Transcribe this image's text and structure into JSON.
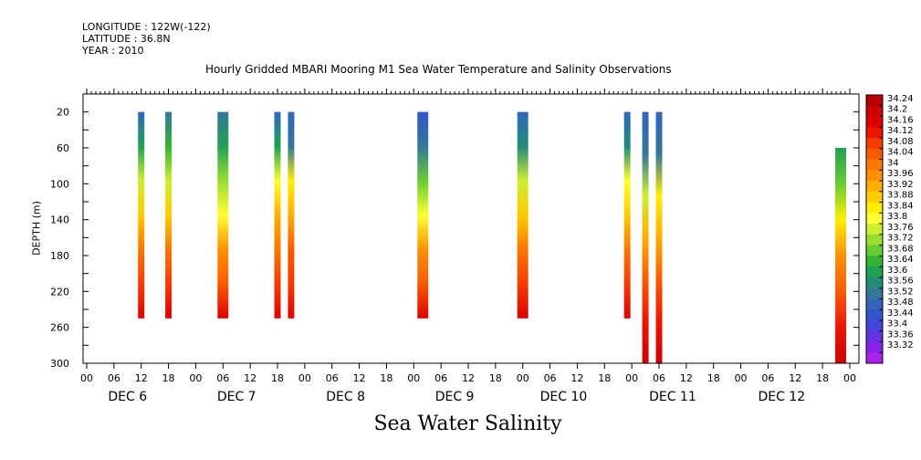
{
  "header": {
    "longitude": "LONGITUDE : 122W(-122)",
    "latitude": "LATITUDE : 36.8N",
    "year": "YEAR : 2010"
  },
  "chart_data": {
    "type": "heatmap",
    "title": "Hourly Gridded MBARI Mooring M1 Sea Water Temperature and Salinity Observations",
    "xlabel": "Sea Water Salinity",
    "ylabel": "DEPTH (m)",
    "x_unit": "hours since DEC 6 00",
    "x_range": [
      0,
      168
    ],
    "y_range": [
      300,
      0
    ],
    "y_ticks": [
      20,
      60,
      100,
      140,
      180,
      220,
      260,
      300
    ],
    "x_tick_labels": [
      "00",
      "06",
      "12",
      "18",
      "00",
      "06",
      "12",
      "18",
      "00",
      "06",
      "12",
      "18",
      "00",
      "06",
      "12",
      "18",
      "00",
      "06",
      "12",
      "18",
      "00",
      "06",
      "12",
      "18",
      "00",
      "06",
      "12",
      "18",
      "00"
    ],
    "day_labels": [
      "DEC 6",
      "DEC 7",
      "DEC 8",
      "DEC 9",
      "DEC 10",
      "DEC 11",
      "DEC 12"
    ],
    "colorbar": {
      "labels": [
        "34.24",
        "34.2",
        "34.16",
        "34.12",
        "34.08",
        "34.04",
        "34",
        "33.96",
        "33.92",
        "33.88",
        "33.84",
        "33.8",
        "33.76",
        "33.72",
        "33.68",
        "33.64",
        "33.6",
        "33.56",
        "33.52",
        "33.48",
        "33.44",
        "33.4",
        "33.36",
        "33.32"
      ],
      "colors": [
        "#b50000",
        "#cc0000",
        "#dd0000",
        "#ee1500",
        "#f63a00",
        "#fa5a00",
        "#fc7600",
        "#ff9100",
        "#ffae00",
        "#ffcc00",
        "#ffee00",
        "#ffff33",
        "#ccee33",
        "#99dd33",
        "#66cc33",
        "#33b333",
        "#22a055",
        "#228a77",
        "#337799",
        "#3366bb",
        "#3355cc",
        "#4444dd",
        "#6633e0",
        "#8822e8",
        "#aa22ee"
      ]
    },
    "profiles": [
      {
        "x": 12,
        "width_h": 1,
        "depth_top": 20,
        "depth_bottom": 250,
        "salinity": [
          33.48,
          33.62,
          33.78,
          33.88,
          34.0,
          34.08,
          34.16
        ]
      },
      {
        "x": 18,
        "width_h": 1,
        "depth_top": 20,
        "depth_bottom": 250,
        "salinity": [
          33.52,
          33.64,
          33.78,
          33.88,
          34.0,
          34.08,
          34.16
        ]
      },
      {
        "x": 30,
        "width_h": 2,
        "depth_top": 20,
        "depth_bottom": 250,
        "salinity": [
          33.52,
          33.6,
          33.72,
          33.82,
          33.96,
          34.06,
          34.16
        ]
      },
      {
        "x": 42,
        "width_h": 1,
        "depth_top": 20,
        "depth_bottom": 250,
        "salinity": [
          33.48,
          33.62,
          33.8,
          33.92,
          34.02,
          34.1,
          34.16
        ]
      },
      {
        "x": 45,
        "width_h": 1,
        "depth_top": 20,
        "depth_bottom": 250,
        "salinity": [
          33.48,
          33.52,
          33.84,
          33.94,
          34.04,
          34.1,
          34.16
        ]
      },
      {
        "x": 74,
        "width_h": 2,
        "depth_top": 20,
        "depth_bottom": 250,
        "salinity": [
          33.46,
          33.54,
          33.7,
          33.82,
          33.96,
          34.06,
          34.16
        ]
      },
      {
        "x": 96,
        "width_h": 2,
        "depth_top": 20,
        "depth_bottom": 250,
        "salinity": [
          33.48,
          33.58,
          33.76,
          33.88,
          34.0,
          34.08,
          34.16
        ]
      },
      {
        "x": 119,
        "width_h": 1,
        "depth_top": 20,
        "depth_bottom": 250,
        "salinity": [
          33.48,
          33.56,
          33.8,
          33.9,
          34.02,
          34.1,
          34.16
        ]
      },
      {
        "x": 123,
        "width_h": 1,
        "depth_top": 20,
        "depth_bottom": 300,
        "salinity": [
          33.48,
          33.52,
          33.76,
          33.92,
          34.06,
          34.14,
          34.22
        ]
      },
      {
        "x": 126,
        "width_h": 1,
        "depth_top": 20,
        "depth_bottom": 300,
        "salinity": [
          33.48,
          33.52,
          33.84,
          33.94,
          34.06,
          34.14,
          34.22
        ]
      },
      {
        "x": 166,
        "width_h": 2,
        "depth_top": 60,
        "depth_bottom": 300,
        "salinity": [
          33.6,
          33.7,
          33.84,
          33.96,
          34.04,
          34.12,
          34.2
        ]
      }
    ]
  }
}
